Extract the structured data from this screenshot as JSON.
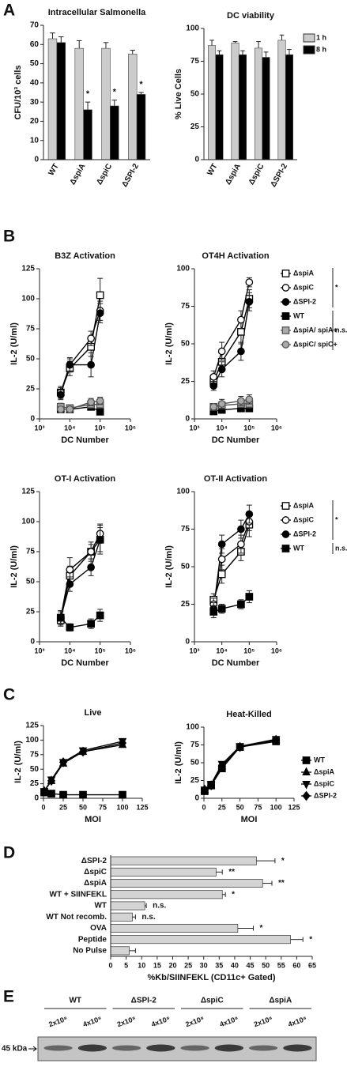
{
  "panel_labels": [
    "A",
    "B",
    "C",
    "D",
    "E"
  ],
  "chart_data": [
    {
      "type": "bar",
      "title": "Intracellular Salmonella",
      "ylabel": "CFU/10³ cells",
      "categories": [
        "WT",
        "ΔspiA",
        "ΔspiC",
        "ΔSPI-2"
      ],
      "series": [
        {
          "name": "1 h",
          "color": "#cccccc",
          "values": [
            63,
            58,
            58,
            55
          ],
          "errors": [
            3,
            4,
            3,
            2
          ]
        },
        {
          "name": "8 h",
          "color": "#000000",
          "values": [
            61,
            26,
            28,
            34
          ],
          "errors": [
            3,
            4,
            3,
            1
          ]
        }
      ],
      "ylim": [
        0,
        70
      ],
      "yticks": [
        0,
        10,
        20,
        30,
        40,
        50,
        60,
        70
      ],
      "annotations": [
        {
          "text": "*",
          "category": "ΔspiA"
        },
        {
          "text": "*",
          "category": "ΔspiC"
        },
        {
          "text": "*",
          "category": "ΔSPI-2"
        }
      ],
      "legend": false
    },
    {
      "type": "bar",
      "title": "DC viability",
      "ylabel": "% Live Cells",
      "categories": [
        "WT",
        "ΔspiA",
        "ΔspiC",
        "ΔSPI-2"
      ],
      "series": [
        {
          "name": "1 h",
          "color": "#cccccc",
          "values": [
            87,
            89,
            85,
            91
          ],
          "errors": [
            4,
            1,
            5,
            4
          ]
        },
        {
          "name": "8 h",
          "color": "#000000",
          "values": [
            80,
            80,
            78,
            80
          ],
          "errors": [
            3,
            3,
            4,
            4
          ]
        }
      ],
      "ylim": [
        0,
        100
      ],
      "yticks": [
        0,
        25,
        50,
        75,
        100
      ],
      "legend": "right"
    },
    {
      "type": "line",
      "title": "B3Z Activation",
      "xlabel": "DC Number",
      "ylabel": "IL-2 (U/ml)",
      "x": [
        5000,
        10000,
        50000,
        100000
      ],
      "xscale": "log",
      "xlim": [
        1000,
        1000000
      ],
      "xticks": [
        {
          "value": 1000,
          "label": "10³"
        },
        {
          "value": 10000,
          "label": "10⁴"
        },
        {
          "value": 100000,
          "label": "10⁵"
        },
        {
          "value": 1000000,
          "label": "10⁶"
        }
      ],
      "ylim": [
        0,
        125
      ],
      "yticks": [
        0,
        25,
        50,
        75,
        100,
        125
      ],
      "series": [
        {
          "name": "ΔspiA",
          "marker": "square",
          "color": "#000000",
          "fill": "#ffffff",
          "values": [
            22,
            42,
            60,
            103
          ],
          "errors": [
            5,
            6,
            8,
            14
          ]
        },
        {
          "name": "ΔspiC",
          "marker": "circle",
          "color": "#000000",
          "fill": "#ffffff",
          "values": [
            22,
            45,
            67,
            90
          ],
          "errors": [
            4,
            5,
            6,
            8
          ]
        },
        {
          "name": "ΔSPI-2",
          "marker": "circle",
          "color": "#000000",
          "fill": "#000000",
          "values": [
            20,
            45,
            45,
            88
          ],
          "errors": [
            4,
            6,
            10,
            8
          ]
        },
        {
          "name": "WT",
          "marker": "square",
          "color": "#000000",
          "fill": "#000000",
          "values": [
            8,
            8,
            10,
            6
          ],
          "errors": [
            2,
            2,
            2,
            2
          ]
        },
        {
          "name": "ΔspiA/ spiA+",
          "marker": "square",
          "color": "#555555",
          "fill": "#aaaaaa",
          "values": [
            10,
            9,
            12,
            12
          ],
          "errors": [
            3,
            2,
            3,
            3
          ]
        },
        {
          "name": "ΔspiC/ spiC+",
          "marker": "circle",
          "color": "#555555",
          "fill": "#aaaaaa",
          "values": [
            8,
            8,
            14,
            15
          ],
          "errors": [
            2,
            2,
            3,
            3
          ]
        }
      ],
      "legend": false
    },
    {
      "type": "line",
      "title": "OT4H Activation",
      "xlabel": "DC Number",
      "ylabel": "IL-2 (U/ml)",
      "x": [
        5000,
        10000,
        50000,
        100000
      ],
      "xscale": "log",
      "xlim": [
        1000,
        1000000
      ],
      "xticks": [
        {
          "value": 1000,
          "label": "10³"
        },
        {
          "value": 10000,
          "label": "10⁴"
        },
        {
          "value": 100000,
          "label": "10⁵"
        },
        {
          "value": 1000000,
          "label": "10⁶"
        }
      ],
      "ylim": [
        0,
        100
      ],
      "yticks": [
        0,
        25,
        50,
        75,
        100
      ],
      "series": [
        {
          "name": "ΔspiA",
          "marker": "square",
          "color": "#000000",
          "fill": "#ffffff",
          "values": [
            25,
            38,
            58,
            80
          ],
          "errors": [
            4,
            6,
            8,
            6
          ]
        },
        {
          "name": "ΔspiC",
          "marker": "circle",
          "color": "#000000",
          "fill": "#ffffff",
          "values": [
            28,
            45,
            66,
            91
          ],
          "errors": [
            4,
            6,
            6,
            3
          ]
        },
        {
          "name": "ΔSPI-2",
          "marker": "circle",
          "color": "#000000",
          "fill": "#000000",
          "values": [
            22,
            33,
            45,
            78
          ],
          "errors": [
            3,
            5,
            6,
            6
          ]
        },
        {
          "name": "WT",
          "marker": "square",
          "color": "#000000",
          "fill": "#000000",
          "values": [
            5,
            6,
            7,
            7
          ],
          "errors": [
            2,
            2,
            2,
            2
          ]
        },
        {
          "name": "ΔspiA/ spiA+",
          "marker": "square",
          "color": "#555555",
          "fill": "#aaaaaa",
          "values": [
            8,
            9,
            10,
            10
          ],
          "errors": [
            2,
            2,
            2,
            3
          ]
        },
        {
          "name": "ΔspiC/ spiC+",
          "marker": "circle",
          "color": "#555555",
          "fill": "#aaaaaa",
          "values": [
            8,
            10,
            12,
            13
          ],
          "errors": [
            2,
            3,
            3,
            3
          ]
        }
      ],
      "legend": "right",
      "legend_brackets": [
        "*",
        "n.s."
      ]
    },
    {
      "type": "line",
      "title": "OT-I Activation",
      "xlabel": "DC Number",
      "ylabel": "IL-2 (U/ml)",
      "x": [
        5000,
        10000,
        50000,
        100000
      ],
      "xscale": "log",
      "xlim": [
        1000,
        1000000
      ],
      "xticks": [
        {
          "value": 1000,
          "label": "10³"
        },
        {
          "value": 10000,
          "label": "10⁴"
        },
        {
          "value": 100000,
          "label": "10⁵"
        },
        {
          "value": 1000000,
          "label": "10⁶"
        }
      ],
      "ylim": [
        0,
        125
      ],
      "yticks": [
        0,
        25,
        50,
        75,
        100,
        125
      ],
      "series": [
        {
          "name": "ΔspiA",
          "marker": "square",
          "color": "#000000",
          "fill": "#ffffff",
          "values": [
            18,
            55,
            75,
            85
          ],
          "errors": [
            5,
            8,
            8,
            10
          ]
        },
        {
          "name": "ΔspiC",
          "marker": "circle",
          "color": "#000000",
          "fill": "#ffffff",
          "values": [
            20,
            60,
            75,
            90
          ],
          "errors": [
            5,
            10,
            6,
            8
          ]
        },
        {
          "name": "ΔSPI-2",
          "marker": "circle",
          "color": "#000000",
          "fill": "#000000",
          "values": [
            20,
            48,
            62,
            85
          ],
          "errors": [
            5,
            6,
            7,
            12
          ]
        },
        {
          "name": "WT",
          "marker": "square",
          "color": "#000000",
          "fill": "#000000",
          "values": [
            20,
            12,
            15,
            22
          ],
          "errors": [
            6,
            3,
            4,
            5
          ]
        }
      ],
      "legend": false
    },
    {
      "type": "line",
      "title": "OT-II Activation",
      "xlabel": "DC Number",
      "ylabel": "IL-2 (U/ml)",
      "x": [
        5000,
        10000,
        50000,
        100000
      ],
      "xscale": "log",
      "xlim": [
        1000,
        1000000
      ],
      "xticks": [
        {
          "value": 1000,
          "label": "10³"
        },
        {
          "value": 10000,
          "label": "10⁴"
        },
        {
          "value": 100000,
          "label": "10⁵"
        },
        {
          "value": 1000000,
          "label": "10⁶"
        }
      ],
      "ylim": [
        0,
        100
      ],
      "yticks": [
        0,
        25,
        50,
        75,
        100
      ],
      "series": [
        {
          "name": "ΔspiA",
          "marker": "square",
          "color": "#000000",
          "fill": "#ffffff",
          "values": [
            28,
            45,
            60,
            78
          ],
          "errors": [
            4,
            6,
            6,
            8
          ]
        },
        {
          "name": "ΔspiC",
          "marker": "circle",
          "color": "#000000",
          "fill": "#ffffff",
          "values": [
            25,
            55,
            65,
            80
          ],
          "errors": [
            4,
            7,
            6,
            6
          ]
        },
        {
          "name": "ΔSPI-2",
          "marker": "circle",
          "color": "#000000",
          "fill": "#000000",
          "values": [
            22,
            65,
            75,
            85
          ],
          "errors": [
            4,
            6,
            6,
            6
          ]
        },
        {
          "name": "WT",
          "marker": "square",
          "color": "#000000",
          "fill": "#000000",
          "values": [
            20,
            22,
            25,
            30
          ],
          "errors": [
            4,
            3,
            3,
            4
          ]
        }
      ],
      "legend": "right",
      "legend_brackets": [
        "*",
        "n.s."
      ]
    },
    {
      "type": "line",
      "title": "Live",
      "xlabel": "MOI",
      "ylabel": "IL-2 (U/ml)",
      "x": [
        1,
        10,
        25,
        50,
        100
      ],
      "xlim": [
        0,
        125
      ],
      "xticks": [
        0,
        25,
        50,
        75,
        100,
        125
      ],
      "ylim": [
        0,
        125
      ],
      "yticks": [
        0,
        25,
        50,
        75,
        100,
        125
      ],
      "series": [
        {
          "name": "WT",
          "marker": "square",
          "color": "#000000",
          "fill": "#000000",
          "values": [
            10,
            8,
            6,
            6,
            6
          ],
          "errors": [
            2,
            2,
            1,
            1,
            1
          ]
        },
        {
          "name": "ΔspiA",
          "marker": "triangle",
          "color": "#000000",
          "fill": "#000000",
          "values": [
            12,
            30,
            60,
            80,
            92
          ],
          "errors": [
            2,
            3,
            3,
            4,
            4
          ]
        },
        {
          "name": "ΔspiC",
          "marker": "triangle-down",
          "color": "#000000",
          "fill": "#000000",
          "values": [
            12,
            32,
            62,
            82,
            98
          ],
          "errors": [
            2,
            3,
            3,
            4,
            4
          ]
        },
        {
          "name": "ΔSPI-2",
          "marker": "diamond",
          "color": "#000000",
          "fill": "#000000",
          "values": [
            12,
            30,
            62,
            80,
            95
          ],
          "errors": [
            2,
            3,
            3,
            4,
            4
          ]
        }
      ],
      "legend": false
    },
    {
      "type": "line",
      "title": "Heat-Killed",
      "xlabel": "MOI",
      "ylabel": "IL-2 (U/ml)",
      "x": [
        1,
        10,
        25,
        50,
        100
      ],
      "xlim": [
        0,
        125
      ],
      "xticks": [
        0,
        25,
        50,
        75,
        100,
        125
      ],
      "ylim": [
        0,
        100
      ],
      "yticks": [
        0,
        25,
        50,
        75,
        100
      ],
      "series": [
        {
          "name": "WT",
          "marker": "square",
          "color": "#000000",
          "fill": "#000000",
          "values": [
            10,
            18,
            42,
            72,
            80
          ],
          "errors": [
            2,
            2,
            3,
            3,
            3
          ]
        },
        {
          "name": "ΔspiA",
          "marker": "triangle",
          "color": "#000000",
          "fill": "#000000",
          "values": [
            12,
            18,
            45,
            72,
            82
          ],
          "errors": [
            2,
            2,
            3,
            3,
            3
          ]
        },
        {
          "name": "ΔspiC",
          "marker": "triangle-down",
          "color": "#000000",
          "fill": "#000000",
          "values": [
            12,
            20,
            48,
            73,
            83
          ],
          "errors": [
            2,
            2,
            3,
            3,
            3
          ]
        },
        {
          "name": "ΔSPI-2",
          "marker": "diamond",
          "color": "#000000",
          "fill": "#000000",
          "values": [
            12,
            18,
            45,
            72,
            82
          ],
          "errors": [
            2,
            2,
            3,
            3,
            3
          ]
        }
      ],
      "legend": "right"
    },
    {
      "type": "barh",
      "xlabel": "%Kb/SIINFEKL (CD11c+ Gated)",
      "categories": [
        "ΔSPI-2",
        "ΔspiC",
        "ΔspiA",
        "WT + SIINFEKL",
        "WT",
        "WT Not recomb.",
        "OVA",
        "Peptide",
        "No Pulse"
      ],
      "values": [
        47,
        34,
        49,
        36,
        11,
        7,
        41,
        58,
        6
      ],
      "errors": [
        6,
        2,
        3,
        1,
        0.5,
        1,
        5,
        4,
        2
      ],
      "annotations": [
        "*",
        "**",
        "**",
        "*",
        "n.s.",
        "n.s.",
        "*",
        "*",
        null
      ],
      "color": "#d4d4d4",
      "xlim": [
        0,
        65
      ],
      "xticks": [
        0,
        5,
        10,
        15,
        20,
        25,
        30,
        35,
        40,
        45,
        50,
        55,
        60,
        65
      ]
    }
  ],
  "blot": {
    "groups": [
      "WT",
      "ΔSPI-2",
      "ΔspiC",
      "ΔspiA"
    ],
    "lanes": [
      "2x10⁸",
      "4x10⁸",
      "2x10⁸",
      "4x10⁸",
      "2x10⁸",
      "4x10⁸",
      "2x10⁸",
      "4x10⁸"
    ],
    "marker": "45 kDa"
  }
}
